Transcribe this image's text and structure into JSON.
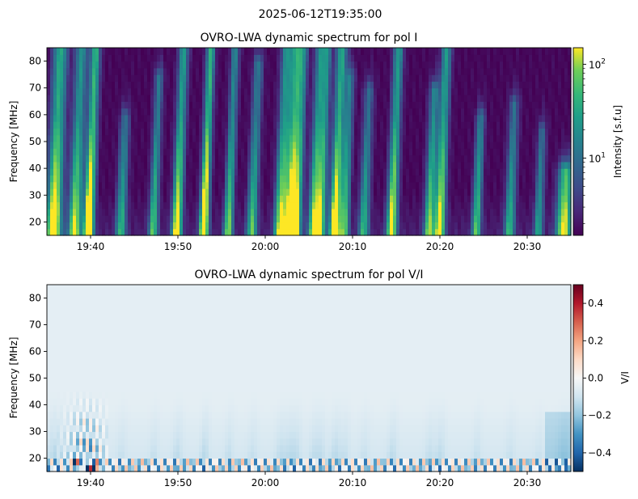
{
  "figure": {
    "suptitle": "2025-06-12T19:35:00"
  },
  "chart_data": [
    {
      "type": "heatmap",
      "title": "OVRO-LWA dynamic spectrum for pol I",
      "xlabel": "",
      "ylabel": "Frequency [MHz]",
      "x_ticks": [
        "19:40",
        "19:50",
        "20:00",
        "20:10",
        "20:20",
        "20:30"
      ],
      "x_tick_minutes": [
        5,
        15,
        25,
        35,
        45,
        55
      ],
      "x_range_minutes": [
        0,
        60
      ],
      "x_start": "19:35",
      "ylim": [
        15,
        85
      ],
      "y_ticks": [
        20,
        30,
        40,
        50,
        60,
        70,
        80
      ],
      "colormap": "viridis",
      "colorbar": {
        "label": "Intensity [s.f.u]",
        "scale": "log",
        "range": [
          1.5,
          150
        ],
        "major_ticks": [
          10,
          100
        ],
        "major_labels": [
          "10",
          "10"
        ],
        "major_exponents": [
          "1",
          "2"
        ],
        "minor_ticks": [
          2,
          3,
          4,
          5,
          6,
          7,
          8,
          9,
          20,
          30,
          40,
          50,
          60,
          70,
          80,
          90
        ]
      },
      "bursts_minutes": [
        {
          "t": 0.8,
          "w": 0.6,
          "amp": 1.2,
          "top": 85
        },
        {
          "t": 3.2,
          "w": 0.5,
          "amp": 1.0,
          "top": 85
        },
        {
          "t": 4.8,
          "w": 0.4,
          "amp": 1.3,
          "top": 85
        },
        {
          "t": 8.5,
          "w": 0.4,
          "amp": 0.7,
          "top": 60
        },
        {
          "t": 12.2,
          "w": 0.35,
          "amp": 0.8,
          "top": 75
        },
        {
          "t": 14.9,
          "w": 0.4,
          "amp": 1.1,
          "top": 85
        },
        {
          "t": 18.0,
          "w": 0.35,
          "amp": 1.3,
          "top": 85
        },
        {
          "t": 20.8,
          "w": 0.35,
          "amp": 0.9,
          "top": 85
        },
        {
          "t": 23.5,
          "w": 0.4,
          "amp": 0.8,
          "top": 80
        },
        {
          "t": 26.7,
          "w": 0.45,
          "amp": 1.0,
          "top": 85
        },
        {
          "t": 27.8,
          "w": 0.45,
          "amp": 1.1,
          "top": 85
        },
        {
          "t": 28.6,
          "w": 0.4,
          "amp": 0.9,
          "top": 85
        },
        {
          "t": 30.6,
          "w": 0.45,
          "amp": 1.0,
          "top": 85
        },
        {
          "t": 31.4,
          "w": 0.35,
          "amp": 0.8,
          "top": 85
        },
        {
          "t": 33.0,
          "w": 0.45,
          "amp": 1.2,
          "top": 85
        },
        {
          "t": 34.1,
          "w": 0.35,
          "amp": 0.8,
          "top": 75
        },
        {
          "t": 36.3,
          "w": 0.4,
          "amp": 0.7,
          "top": 70
        },
        {
          "t": 39.5,
          "w": 0.4,
          "amp": 1.1,
          "top": 85
        },
        {
          "t": 43.8,
          "w": 0.4,
          "amp": 0.9,
          "top": 70
        },
        {
          "t": 45.0,
          "w": 0.4,
          "amp": 1.1,
          "top": 85
        },
        {
          "t": 49.2,
          "w": 0.35,
          "amp": 0.8,
          "top": 60
        },
        {
          "t": 53.0,
          "w": 0.4,
          "amp": 0.7,
          "top": 65
        },
        {
          "t": 56.3,
          "w": 0.35,
          "amp": 0.6,
          "top": 55
        },
        {
          "t": 59.2,
          "w": 0.6,
          "amp": 1.0,
          "top": 40
        }
      ]
    },
    {
      "type": "heatmap",
      "title": "OVRO-LWA dynamic spectrum for pol V/I",
      "xlabel": "",
      "ylabel": "Frequency [MHz]",
      "x_ticks": [
        "19:40",
        "19:50",
        "20:00",
        "20:10",
        "20:20",
        "20:30"
      ],
      "x_tick_minutes": [
        5,
        15,
        25,
        35,
        45,
        55
      ],
      "x_range_minutes": [
        0,
        60
      ],
      "x_start": "19:35",
      "ylim": [
        15,
        85
      ],
      "y_ticks": [
        20,
        30,
        40,
        50,
        60,
        70,
        80
      ],
      "colormap": "RdBu_r",
      "colorbar": {
        "label": "V/I",
        "scale": "linear",
        "range": [
          -0.5,
          0.5
        ],
        "ticks": [
          -0.4,
          -0.2,
          0.0,
          0.2,
          0.4
        ],
        "tick_labels": [
          "−0.4",
          "−0.2",
          "0.0",
          "0.2",
          "0.4"
        ]
      }
    }
  ],
  "colors": {
    "axis": "#000000",
    "background": "#ffffff"
  }
}
